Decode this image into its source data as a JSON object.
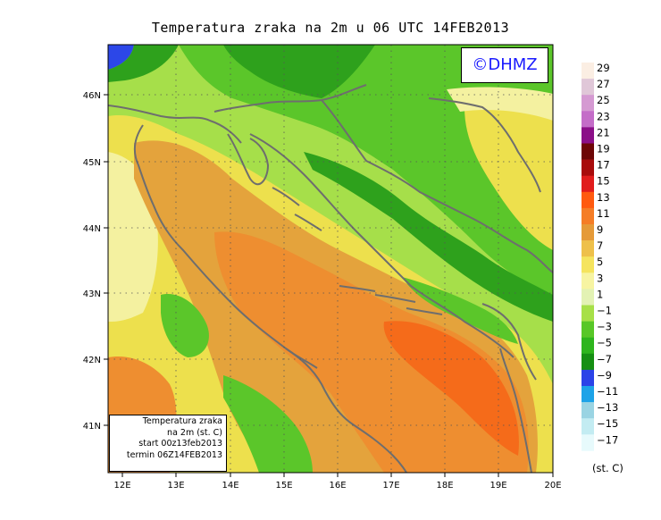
{
  "title": "Temperatura zraka na 2m u 06 UTC 14FEB2013",
  "copyright": "©DHMZ",
  "info_box": {
    "line1": "Temperatura zraka",
    "line2": "na 2m (st. C)",
    "line3": "start 00z13feb2013",
    "line4": "termin 06Z14FEB2013"
  },
  "axes": {
    "lat_labels": [
      "46N",
      "45N",
      "44N",
      "43N",
      "42N",
      "41N"
    ],
    "lon_labels": [
      "12E",
      "13E",
      "14E",
      "15E",
      "16E",
      "17E",
      "18E",
      "19E",
      "20E"
    ]
  },
  "legend": {
    "unit": "(st. C)",
    "labels": [
      "29",
      "27",
      "25",
      "23",
      "21",
      "19",
      "17",
      "15",
      "13",
      "11",
      "9",
      "7",
      "5",
      "3",
      "1",
      "−1",
      "−3",
      "−5",
      "−7",
      "−9",
      "−11",
      "−13",
      "−15",
      "−17"
    ],
    "colors": [
      "#fbeee3",
      "#e0c7d8",
      "#d59ad2",
      "#c46dc8",
      "#8b0f88",
      "#6d0606",
      "#a80b0b",
      "#e11c1c",
      "#ff5a0f",
      "#f57d26",
      "#e59a38",
      "#eec04a",
      "#f5e45e",
      "#f7f4a2",
      "#e3f2b4",
      "#a7e048",
      "#58c728",
      "#2eb51d",
      "#168f13",
      "#2b43e8",
      "#1da3e8",
      "#9ad4e3",
      "#c3ecf2",
      "#e7fafc"
    ]
  },
  "map_colors": {
    "base_green": "#a6df4a",
    "light_yellow": "#f4f1a0",
    "yellow": "#ede04d",
    "orange_light": "#e4a33c",
    "orange": "#ee8e30",
    "red_orange": "#f56b1a",
    "green_mid": "#5bc62a",
    "green_dark": "#2ea11c",
    "blue": "#2c47e8",
    "coast": "#6e6e6e"
  }
}
